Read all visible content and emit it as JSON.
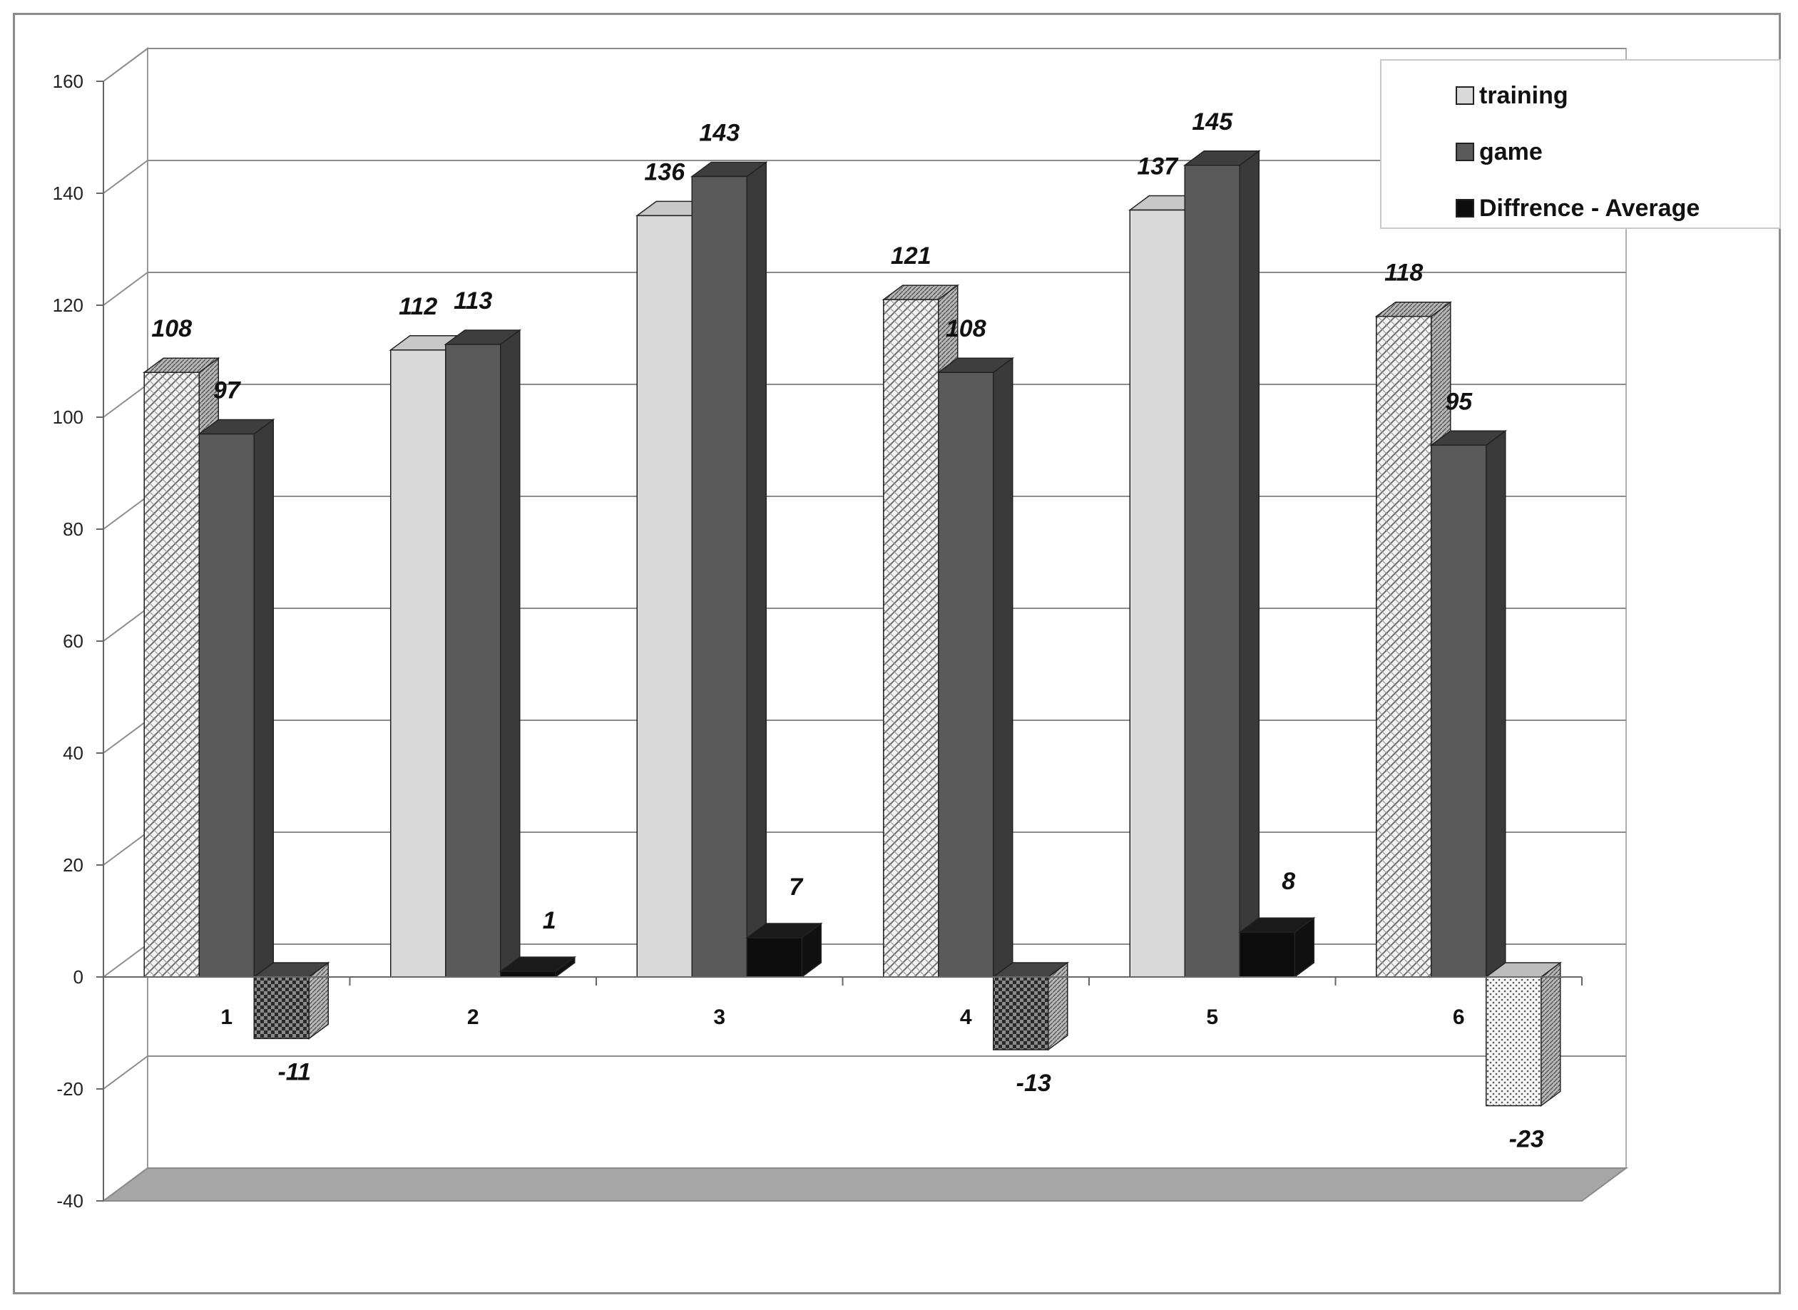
{
  "chart_data": {
    "type": "bar",
    "categories": [
      "1",
      "2",
      "3",
      "4",
      "5",
      "6"
    ],
    "series": [
      {
        "name": "training",
        "values": [
          108,
          112,
          136,
          121,
          137,
          118
        ]
      },
      {
        "name": "game",
        "values": [
          97,
          113,
          143,
          108,
          145,
          95
        ]
      },
      {
        "name": "Diffrence - Average",
        "values": [
          -11,
          1,
          7,
          -13,
          8,
          -23
        ]
      }
    ],
    "data_labels": {
      "training": [
        "108",
        "112",
        "136",
        "121",
        "137",
        "118"
      ],
      "game": [
        "97",
        "113",
        "143",
        "108",
        "145",
        "95"
      ],
      "Diffrence - Average": [
        "-11",
        "1",
        "7",
        "-13",
        "8",
        "-23"
      ]
    },
    "ylim": [
      -40,
      160
    ],
    "yticks": [
      -40,
      -20,
      0,
      20,
      40,
      60,
      80,
      100,
      120,
      140,
      160
    ],
    "ytick_labels": [
      "-40",
      "-20",
      "0",
      "20",
      "40",
      "60",
      "80",
      "100",
      "120",
      "140",
      "160"
    ],
    "grid": true,
    "style": "3d clustered column",
    "legend_position": "top-right",
    "colors": {
      "training": "#d9d9d9",
      "game": "#5a5a5a",
      "difference": "#0d0d0d",
      "floor": "#a6a6a6",
      "grid": "#8c8c8c"
    },
    "title": "",
    "xlabel": "",
    "ylabel": ""
  }
}
